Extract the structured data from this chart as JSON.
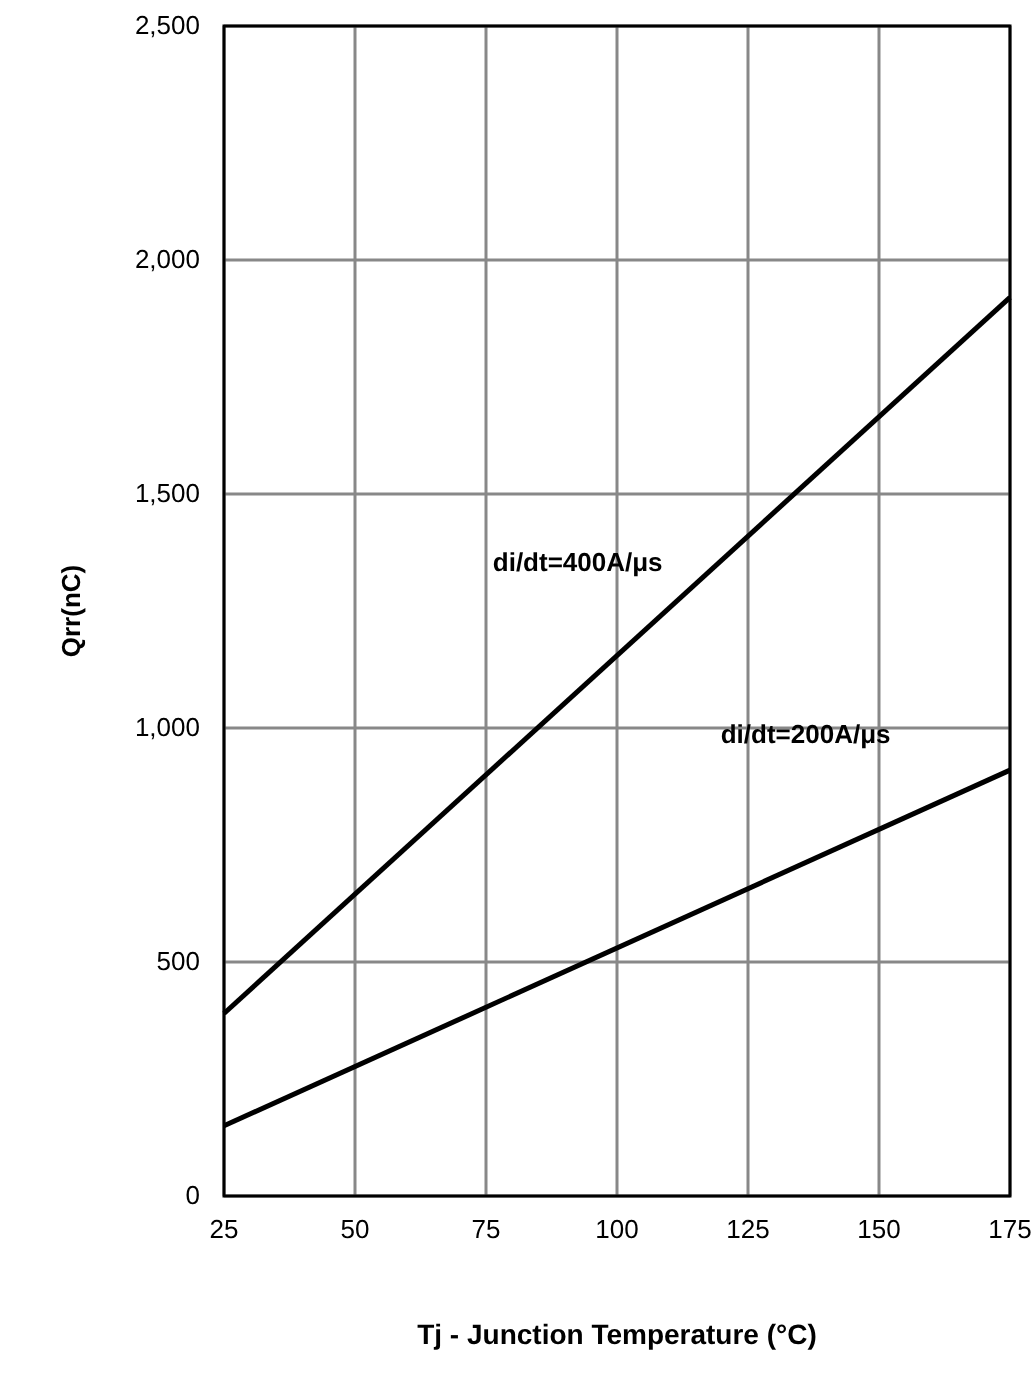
{
  "chart_data": {
    "type": "line",
    "xlabel": "Tj - Junction Temperature (°C)",
    "ylabel": "Qrr(nC)",
    "xlim": [
      25,
      175
    ],
    "xticks": [
      25,
      50,
      75,
      100,
      125,
      150,
      175
    ],
    "ylim": [
      0,
      2500
    ],
    "yticks": [
      0,
      {
        "value": 500,
        "label": "500"
      },
      {
        "value": 1000,
        "label": "1,000"
      },
      {
        "value": 1500,
        "label": "1,500"
      },
      {
        "value": 2000,
        "label": "2,000"
      },
      {
        "value": 2500,
        "label": "2,500"
      }
    ],
    "grid": true,
    "marker": "none",
    "line_style": "solid",
    "x": [
      25,
      175
    ],
    "series": [
      {
        "name": "di/dt=400A/μs",
        "color": "#000000",
        "values": [
          390,
          1920
        ]
      },
      {
        "name": "di/dt=200A/μs",
        "color": "#000000",
        "values": [
          150,
          910
        ]
      }
    ]
  }
}
